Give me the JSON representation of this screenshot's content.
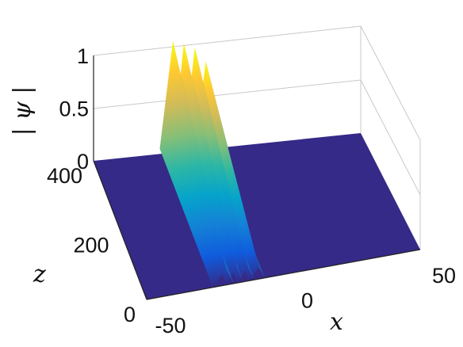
{
  "chart_data": {
    "type": "surface",
    "title": "",
    "xlabel": "x",
    "ylabel": "z",
    "zlabel": "| ψ |",
    "xlim": [
      -50,
      50
    ],
    "ylim": [
      0,
      400
    ],
    "zlim": [
      0,
      1
    ],
    "x_ticks": [
      "-50",
      "0",
      "50"
    ],
    "y_ticks": [
      "0",
      "200",
      "400"
    ],
    "z_ticks": [
      "0",
      "0.5",
      "1"
    ],
    "colormap": "parula",
    "colors": [
      "#352a87",
      "#0f5cdd",
      "#1481d6",
      "#06a4ca",
      "#2eb7a4",
      "#87bf77",
      "#d1bb59",
      "#fec832",
      "#f9fb0e"
    ],
    "ridges": [
      {
        "x": -21,
        "peak": 1.0,
        "width": 1.6
      },
      {
        "x": -17,
        "peak": 0.96,
        "width": 1.3
      },
      {
        "x": -13,
        "peak": 0.9,
        "width": 1.3
      },
      {
        "x": -9,
        "peak": 0.75,
        "width": 1.2
      }
    ]
  }
}
